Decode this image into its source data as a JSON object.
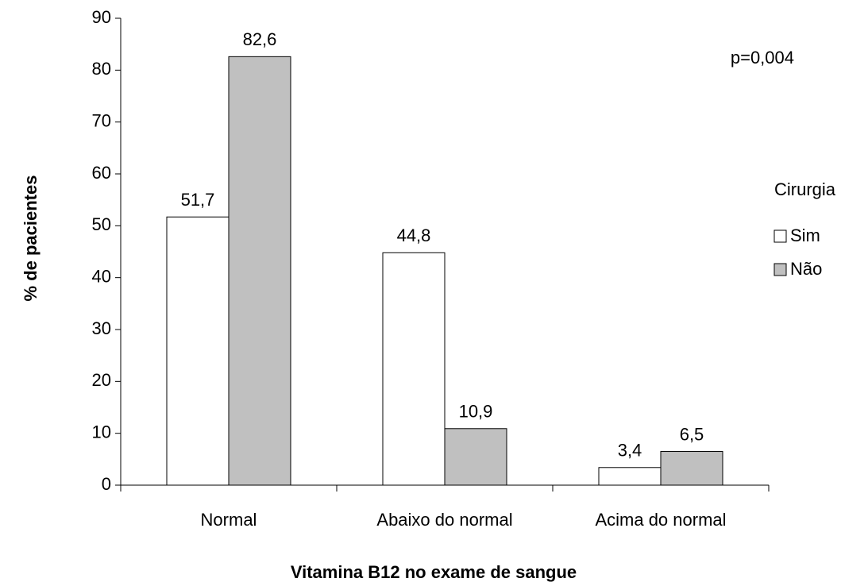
{
  "chart_data": {
    "type": "bar",
    "categories": [
      "Normal",
      "Abaixo do normal",
      "Acima do normal"
    ],
    "series": [
      {
        "name": "Sim",
        "color": "#ffffff",
        "values": [
          51.7,
          44.8,
          3.4
        ],
        "value_labels": [
          "51,7",
          "44,8",
          "3,4"
        ]
      },
      {
        "name": "Não",
        "color": "#c0c0c0",
        "values": [
          82.6,
          10.9,
          6.5
        ],
        "value_labels": [
          "82,6",
          "10,9",
          "6,5"
        ]
      }
    ],
    "ylim": [
      0,
      90
    ],
    "yticks": [
      0,
      10,
      20,
      30,
      40,
      50,
      60,
      70,
      80,
      90
    ],
    "y_label": "% de pacientes",
    "x_label": "Vitamina B12 no exame de sangue",
    "legend_title": "Cirurgia",
    "legend": "right",
    "annotation": "p=0,004",
    "grid": false
  }
}
